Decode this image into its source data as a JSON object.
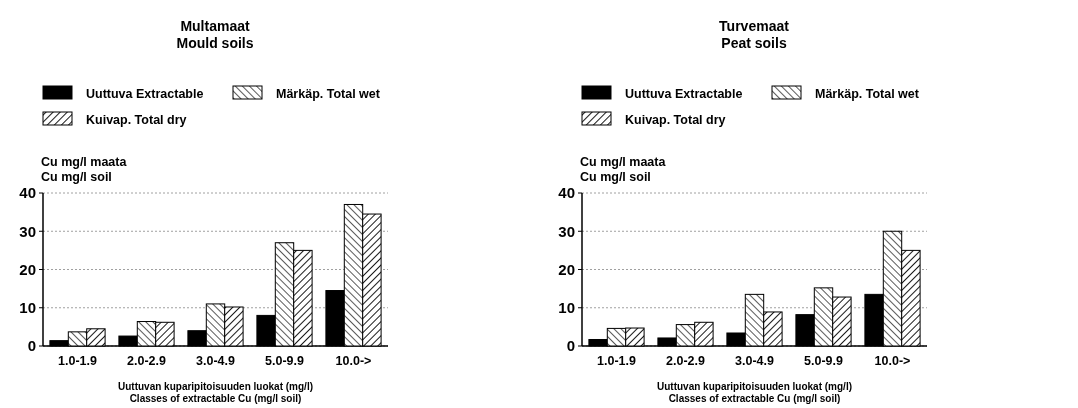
{
  "chart_data": [
    {
      "type": "bar",
      "title": "Multamaat\nMould soils",
      "xlabel": "Uuttuvan kuparipitoisuuden luokat (mg/l)\nClasses of extractable Cu (mg/l soil)",
      "ylabel": "Cu mg/l maata\nCu mg/l soil",
      "categories": [
        "1.0-1.9",
        "2.0-2.9",
        "3.0-4.9",
        "5.0-9.9",
        "10.0->"
      ],
      "ylim": [
        0,
        40
      ],
      "yticks": [
        0,
        10,
        20,
        30,
        40
      ],
      "grid": "y",
      "legend": "top",
      "series": [
        {
          "name": "Uuttuva Extractable",
          "color": "#000000",
          "values": [
            1.4,
            2.6,
            4.0,
            8.0,
            14.5
          ]
        },
        {
          "name": "Märkäp. Total wet",
          "color": "#000000",
          "values": [
            3.7,
            6.4,
            11,
            27,
            37
          ]
        },
        {
          "name": "Kuivap. Total dry",
          "color": "#000000",
          "values": [
            4.5,
            6.2,
            10.2,
            25,
            34.5
          ]
        }
      ]
    },
    {
      "type": "bar",
      "title": "Turvemaat\nPeat soils",
      "xlabel": "Uuttuvan kuparipitoisuuden luokat (mg/l)\nClasses of extractable Cu (mg/l soil)",
      "ylabel": "Cu mg/l maata\nCu mg/l soil",
      "categories": [
        "1.0-1.9",
        "2.0-2.9",
        "3.0-4.9",
        "5.0-9.9",
        "10.0->"
      ],
      "ylim": [
        0,
        40
      ],
      "yticks": [
        0,
        10,
        20,
        30,
        40
      ],
      "grid": "y",
      "legend": "top",
      "series": [
        {
          "name": "Uuttuva Extractable",
          "color": "#000000",
          "values": [
            1.7,
            2.1,
            3.4,
            8.2,
            13.5
          ]
        },
        {
          "name": "Märkäp. Total wet",
          "color": "#000000",
          "values": [
            4.6,
            5.6,
            13.5,
            15.2,
            30
          ]
        },
        {
          "name": "Kuivap. Total dry",
          "color": "#000000",
          "values": [
            4.7,
            6.2,
            8.9,
            12.8,
            25
          ]
        }
      ]
    }
  ]
}
